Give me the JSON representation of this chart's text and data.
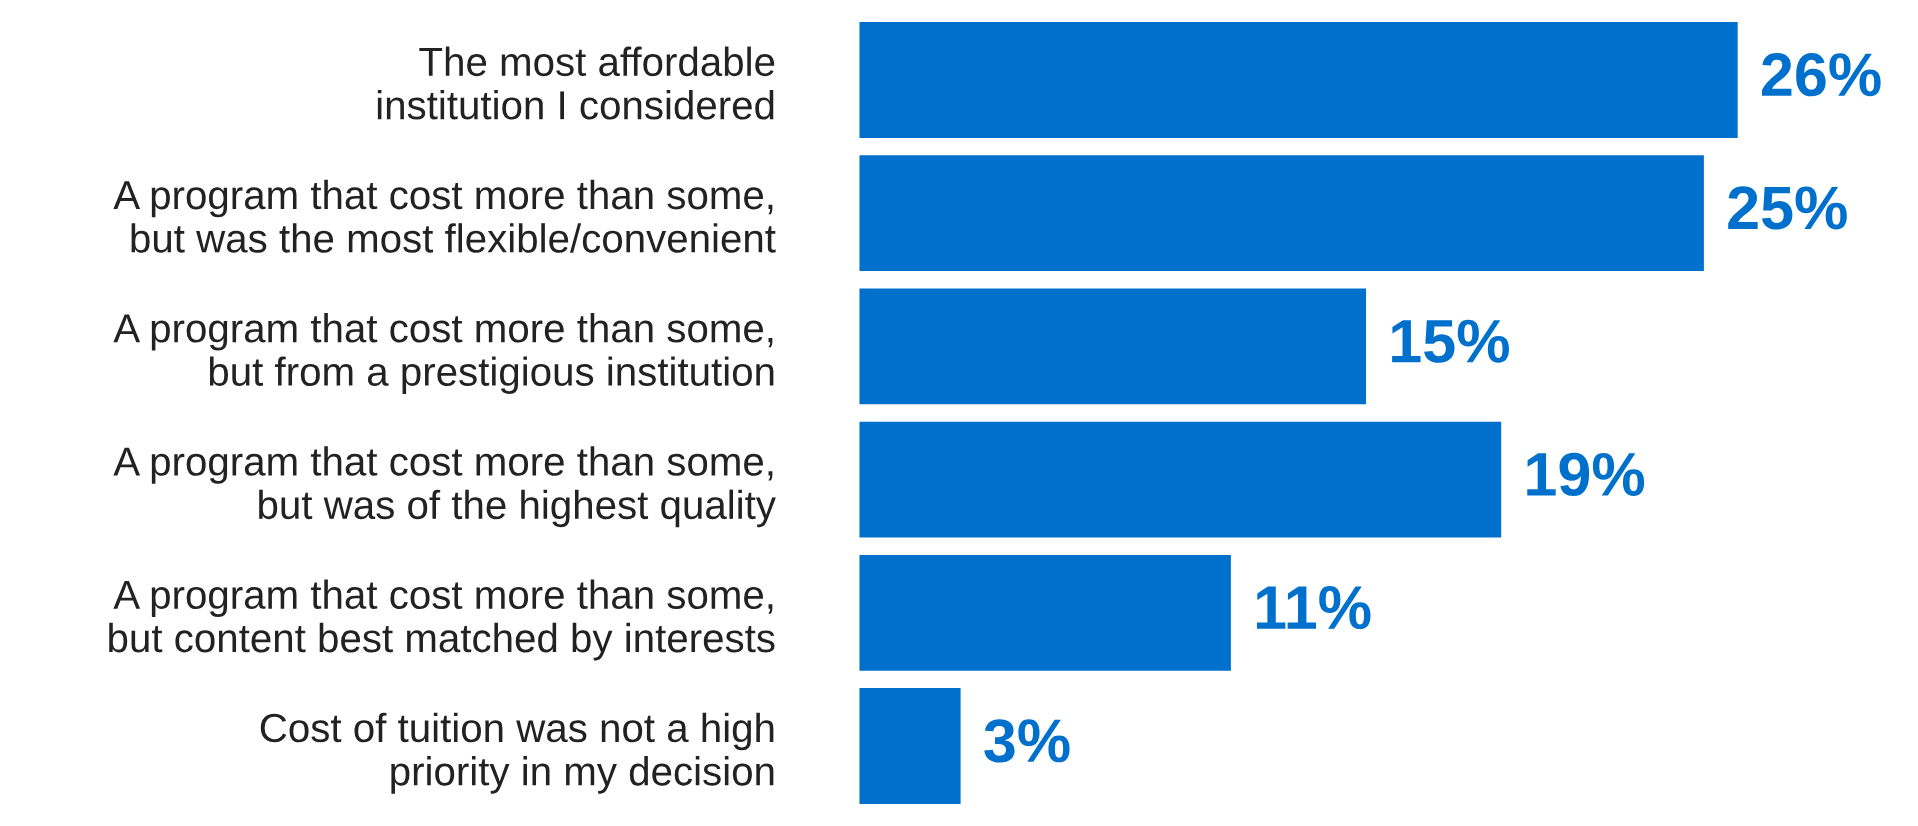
{
  "chart_data": {
    "type": "bar",
    "orientation": "horizontal",
    "categories": [
      "The most affordable\ninstitution I considered",
      "A program that cost more than some,\nbut was the most flexible/convenient",
      "A program that cost more than some,\nbut from a prestigious institution",
      "A program that cost more than some,\nbut was of the highest quality",
      "A program that cost more than some,\nbut content best matched by interests",
      "Cost of tuition was not a high\npriority in my decision"
    ],
    "values": [
      26,
      25,
      15,
      19,
      11,
      3
    ],
    "value_labels": [
      "26%",
      "25%",
      "15%",
      "19%",
      "11%",
      "3%"
    ],
    "color": "#0070cd"
  }
}
